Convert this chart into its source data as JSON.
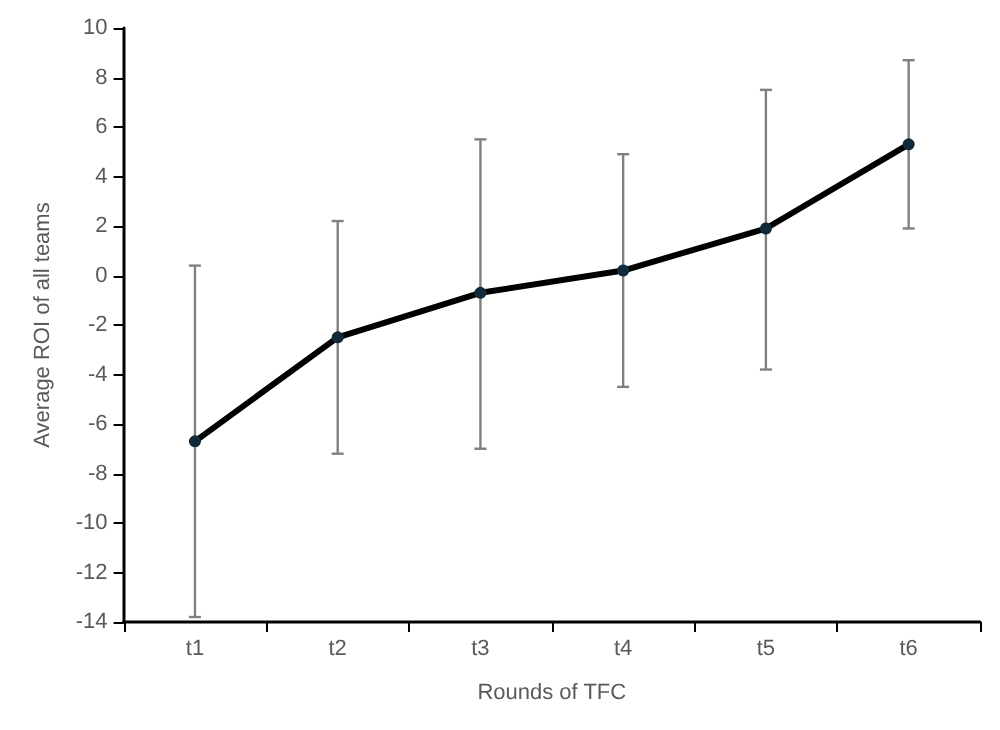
{
  "chart_data": {
    "type": "line",
    "xlabel": "Rounds of TFC",
    "ylabel": "Average ROI of all teams",
    "categories": [
      "t1",
      "t2",
      "t3",
      "t4",
      "t5",
      "t6"
    ],
    "series": [
      {
        "color": "#000000",
        "values": [
          -6.7,
          -2.5,
          -0.7,
          0.2,
          1.9,
          5.3
        ],
        "errors": [
          [
            -13.8,
            0.4
          ],
          [
            -7.2,
            2.2
          ],
          [
            -7.0,
            5.5
          ],
          [
            -4.5,
            4.9
          ],
          [
            -3.8,
            7.5
          ],
          [
            1.9,
            8.7
          ]
        ]
      }
    ],
    "ylim": [
      -14,
      10
    ],
    "yticks": [
      -14,
      -12,
      -10,
      -8,
      -6,
      -4,
      -2,
      0,
      2,
      4,
      6,
      8,
      10
    ],
    "grid": false,
    "marker": "circle",
    "line_style": "solid"
  }
}
